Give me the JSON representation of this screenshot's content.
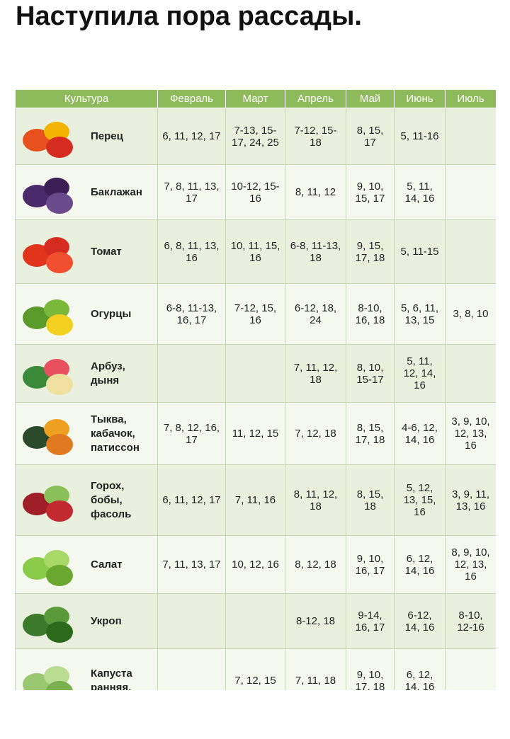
{
  "header": {
    "title": "Наступила пора рассады."
  },
  "table": {
    "columns": [
      "Культура",
      "Февраль",
      "Март",
      "Апрель",
      "Май",
      "Июнь",
      "Июль"
    ],
    "rows": [
      {
        "name": "Перец",
        "cells": [
          "6, 11, 12, 17",
          "7-13, 15-17, 24, 25",
          "7-12, 15-18",
          "8, 15, 17",
          "5, 11-16",
          null
        ]
      },
      {
        "name": "Баклажан",
        "cells": [
          "7, 8, 11, 13, 17",
          "10-12, 15-16",
          "8, 11, 12",
          "9, 10, 15, 17",
          "5, 11, 14, 16",
          null
        ]
      },
      {
        "name": "Томат",
        "cells": [
          "6, 8, 11, 13, 16",
          "10, 11, 15, 16",
          "6-8, 11-13, 18",
          "9, 15, 17, 18",
          "5, 11-15",
          null
        ]
      },
      {
        "name": "Огурцы",
        "cells": [
          "6-8, 11-13, 16, 17",
          "7-12, 15, 16",
          "6-12, 18, 24",
          "8-10, 16, 18",
          "5, 6, 11, 13, 15",
          "3, 8, 10"
        ]
      },
      {
        "name": "Арбуз, дыня",
        "cells": [
          null,
          null,
          "7, 11, 12, 18",
          "8, 10, 15-17",
          "5, 11, 12, 14, 16",
          null
        ]
      },
      {
        "name": "Тыква, кабачок, патиссон",
        "cells": [
          "7, 8, 12, 16, 17",
          "11, 12, 15",
          "7, 12, 18",
          "8, 15, 17, 18",
          "4-6, 12, 14, 16",
          "3, 9, 10, 12, 13, 16"
        ]
      },
      {
        "name": "Горох, бобы, фасоль",
        "cells": [
          "6, 11, 12, 17",
          "7, 11, 16",
          "8, 11, 12, 18",
          "8, 15, 18",
          "5, 12, 13, 15, 16",
          "3, 9, 11, 13, 16"
        ]
      },
      {
        "name": "Салат",
        "cells": [
          "7, 11, 13, 17",
          "10, 12, 16",
          "8, 12, 18",
          "9, 10, 16, 17",
          "6, 12, 14, 16",
          "8, 9, 10, 12, 13, 16"
        ]
      },
      {
        "name": "Укроп",
        "cells": [
          null,
          null,
          "8-12, 18",
          "9-14, 16, 17",
          "6-12, 14, 16",
          "8-10, 12-16"
        ]
      },
      {
        "name": "Капуста ранняя,",
        "cells": [
          null,
          "7, 12, 15",
          "7, 11, 18",
          "9, 10, 17, 18",
          "6, 12, 14, 16",
          null
        ]
      }
    ]
  }
}
